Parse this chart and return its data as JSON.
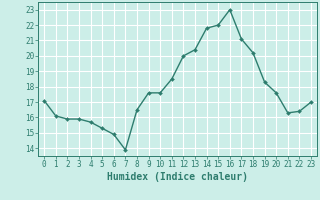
{
  "x": [
    0,
    1,
    2,
    3,
    4,
    5,
    6,
    7,
    8,
    9,
    10,
    11,
    12,
    13,
    14,
    15,
    16,
    17,
    18,
    19,
    20,
    21,
    22,
    23
  ],
  "y": [
    17.1,
    16.1,
    15.9,
    15.9,
    15.7,
    15.3,
    14.9,
    13.9,
    16.5,
    17.6,
    17.6,
    18.5,
    20.0,
    20.4,
    21.8,
    22.0,
    23.0,
    21.1,
    20.2,
    18.3,
    17.6,
    16.3,
    16.4,
    17.0
  ],
  "line_color": "#2e7d6e",
  "marker": "D",
  "marker_size": 2.0,
  "bg_color": "#cceee8",
  "grid_color": "#ffffff",
  "xlabel": "Humidex (Indice chaleur)",
  "xlim": [
    -0.5,
    23.5
  ],
  "ylim": [
    13.5,
    23.5
  ],
  "xticks": [
    0,
    1,
    2,
    3,
    4,
    5,
    6,
    7,
    8,
    9,
    10,
    11,
    12,
    13,
    14,
    15,
    16,
    17,
    18,
    19,
    20,
    21,
    22,
    23
  ],
  "yticks": [
    14,
    15,
    16,
    17,
    18,
    19,
    20,
    21,
    22,
    23
  ],
  "tick_color": "#2e7d6e",
  "label_color": "#2e7d6e",
  "tick_fontsize": 5.5,
  "xlabel_fontsize": 7.0,
  "linewidth": 1.0
}
